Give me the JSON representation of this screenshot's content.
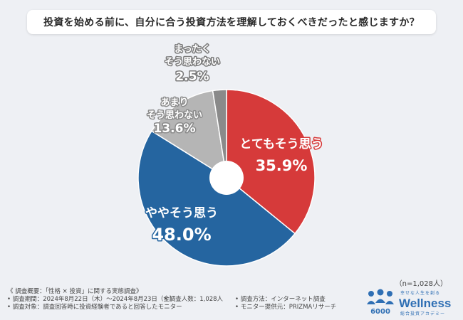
{
  "title": "投資を始める前に、自分に合う投資方法を理解しておくべきだったと感じますか？",
  "sample_size": "（n=1,028人）",
  "chart_data": {
    "type": "pie",
    "title": "投資を始める前に、自分に合う投資方法を理解しておくべきだったと感じますか？",
    "slices": [
      {
        "label": "とてもそう思う",
        "value": 35.9,
        "value_text": "35.9%",
        "color": "#d63a3a"
      },
      {
        "label": "ややそう思う",
        "value": 48.0,
        "value_text": "48.0%",
        "color": "#2565a0"
      },
      {
        "label": "あまりそう思わない",
        "value": 13.6,
        "value_text": "13.6%",
        "color": "#b5b5b5"
      },
      {
        "label": "まったくそう思わない",
        "value": 2.5,
        "value_text": "2.5%",
        "color": "#8a8a8a"
      }
    ]
  },
  "footer": {
    "overview": "《 調査概要：「性格 × 投資」に関する実態調査》",
    "period": "• 調査期間：2024年8月22日（木）〜2024年8月23日（金）",
    "count": "• 調査人数：1,028人",
    "method": "• 調査方法：インターネット調査",
    "target": "• 調査対象：調査回答時に投資経験者であると回答したモニター",
    "provider": "• モニター提供元：PRIZMAリサーチ"
  },
  "logo": {
    "tagline": "幸せな人生を創る",
    "brand": "Wellness",
    "subtitle": "総合投資アカデミー",
    "icon": "people-logo-icon"
  }
}
